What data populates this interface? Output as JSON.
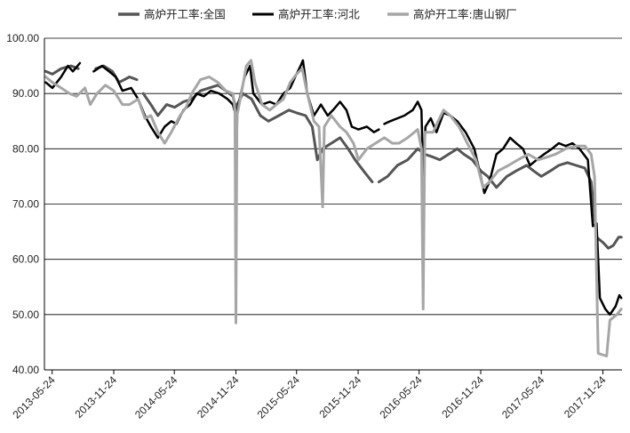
{
  "chart_data": {
    "type": "line",
    "title": "",
    "xlabel": "",
    "ylabel": "",
    "ylim": [
      40,
      100
    ],
    "y_ticks": [
      "40.00",
      "50.00",
      "60.00",
      "70.00",
      "80.00",
      "90.00",
      "100.00"
    ],
    "x_range": [
      "2013-05-01",
      "2018-01-20"
    ],
    "x_tick_labels": [
      "2013-05-24",
      "2013-11-24",
      "2014-05-24",
      "2014-11-24",
      "2015-05-24",
      "2015-11-24",
      "2016-05-24",
      "2016-11-24",
      "2017-05-24",
      "2017-11-24"
    ],
    "grid": "horizontal",
    "legend": "top",
    "series": [
      {
        "name": "高炉开工率:全国",
        "color": "#555555",
        "width": 3,
        "points": [
          [
            "2013-05-05",
            94
          ],
          [
            "2013-05-25",
            93.5
          ],
          [
            "2013-06-20",
            94.5
          ],
          [
            "2013-07-20",
            95
          ],
          [
            "2013-08-10",
            94.5
          ],
          null,
          [
            "2013-10-01",
            94.5
          ],
          [
            "2013-10-25",
            95
          ],
          [
            "2013-11-20",
            94
          ],
          [
            "2013-12-10",
            92
          ],
          [
            "2014-01-10",
            93
          ],
          [
            "2014-02-01",
            92.5
          ],
          null,
          [
            "2014-02-20",
            90
          ],
          [
            "2014-03-15",
            88
          ],
          [
            "2014-04-05",
            86
          ],
          [
            "2014-05-01",
            88
          ],
          [
            "2014-05-25",
            87.5
          ],
          [
            "2014-06-20",
            88.5
          ],
          [
            "2014-07-15",
            89
          ],
          [
            "2014-08-10",
            90.5
          ],
          [
            "2014-09-05",
            91
          ],
          [
            "2014-10-01",
            91.5
          ],
          [
            "2014-10-25",
            90.5
          ],
          [
            "2014-11-15",
            89.5
          ],
          [
            "2014-11-21",
            88
          ],
          [
            "2014-11-24",
            76
          ],
          [
            "2014-11-28",
            88
          ],
          [
            "2014-12-15",
            90
          ],
          [
            "2015-01-10",
            89
          ],
          [
            "2015-02-05",
            86
          ],
          [
            "2015-03-01",
            85
          ],
          [
            "2015-04-01",
            86
          ],
          [
            "2015-05-01",
            87
          ],
          [
            "2015-05-24",
            86.5
          ],
          [
            "2015-06-20",
            86
          ],
          [
            "2015-07-10",
            84
          ],
          [
            "2015-07-25",
            78
          ],
          [
            "2015-08-10",
            80
          ],
          [
            "2015-09-05",
            81
          ],
          [
            "2015-10-01",
            82
          ],
          [
            "2015-10-25",
            80
          ],
          [
            "2015-11-15",
            78
          ],
          [
            "2015-12-10",
            76
          ],
          [
            "2016-01-05",
            74
          ],
          null,
          [
            "2016-01-25",
            74
          ],
          [
            "2016-02-20",
            75
          ],
          [
            "2016-03-20",
            77
          ],
          [
            "2016-04-20",
            78
          ],
          [
            "2016-05-20",
            80
          ],
          [
            "2016-06-10",
            79
          ],
          [
            "2016-07-05",
            78.5
          ],
          [
            "2016-07-25",
            78
          ],
          [
            "2016-08-20",
            79
          ],
          [
            "2016-09-15",
            80
          ],
          [
            "2016-10-05",
            79
          ],
          [
            "2016-10-30",
            78
          ],
          [
            "2016-11-24",
            76
          ],
          [
            "2016-12-15",
            75
          ],
          [
            "2017-01-10",
            73
          ],
          [
            "2017-02-10",
            75
          ],
          [
            "2017-03-10",
            76
          ],
          [
            "2017-04-10",
            77
          ],
          [
            "2017-05-01",
            76
          ],
          [
            "2017-05-24",
            75
          ],
          [
            "2017-06-20",
            76
          ],
          [
            "2017-07-15",
            77
          ],
          [
            "2017-08-10",
            77.5
          ],
          [
            "2017-09-05",
            77
          ],
          [
            "2017-10-01",
            76.5
          ],
          [
            "2017-10-20",
            74
          ],
          [
            "2017-11-05",
            64
          ],
          [
            "2017-11-25",
            63
          ],
          [
            "2017-12-10",
            62
          ],
          [
            "2017-12-25",
            62.5
          ],
          [
            "2018-01-10",
            64
          ],
          [
            "2018-01-18",
            64
          ]
        ]
      },
      {
        "name": "高炉开工率:河北",
        "color": "#000000",
        "width": 2.5,
        "points": [
          [
            "2013-05-05",
            92
          ],
          [
            "2013-05-25",
            91
          ],
          [
            "2013-06-20",
            93
          ],
          [
            "2013-07-10",
            95
          ],
          [
            "2013-07-25",
            94
          ],
          [
            "2013-08-15",
            95.5
          ],
          null,
          [
            "2013-09-25",
            94
          ],
          [
            "2013-10-20",
            95
          ],
          [
            "2013-11-10",
            94
          ],
          [
            "2013-11-30",
            93
          ],
          [
            "2013-12-20",
            90.5
          ],
          [
            "2014-01-15",
            91
          ],
          [
            "2014-02-05",
            89
          ],
          [
            "2014-02-25",
            86
          ],
          [
            "2014-03-15",
            84
          ],
          [
            "2014-04-05",
            82
          ],
          [
            "2014-04-25",
            84
          ],
          [
            "2014-05-15",
            85
          ],
          [
            "2014-05-30",
            84.5
          ],
          [
            "2014-06-20",
            87
          ],
          [
            "2014-07-10",
            88
          ],
          [
            "2014-07-30",
            90
          ],
          [
            "2014-08-20",
            89.5
          ],
          [
            "2014-09-10",
            90.5
          ],
          [
            "2014-10-05",
            90
          ],
          [
            "2014-10-30",
            89
          ],
          [
            "2014-11-15",
            88
          ],
          [
            "2014-11-24",
            86
          ],
          [
            "2014-12-05",
            89
          ],
          [
            "2014-12-20",
            93
          ],
          [
            "2015-01-05",
            95
          ],
          [
            "2015-01-15",
            90
          ],
          [
            "2015-02-10",
            88
          ],
          [
            "2015-03-05",
            88.5
          ],
          [
            "2015-03-25",
            88
          ],
          [
            "2015-04-15",
            90
          ],
          [
            "2015-05-05",
            91
          ],
          [
            "2015-05-20",
            93
          ],
          [
            "2015-06-05",
            95
          ],
          [
            "2015-06-12",
            96
          ],
          [
            "2015-06-25",
            90
          ],
          [
            "2015-07-15",
            86
          ],
          [
            "2015-08-05",
            88
          ],
          [
            "2015-08-25",
            86
          ],
          [
            "2015-09-10",
            87
          ],
          [
            "2015-10-01",
            88.5
          ],
          [
            "2015-10-20",
            87
          ],
          [
            "2015-11-05",
            84
          ],
          [
            "2015-11-25",
            83.5
          ],
          [
            "2015-12-20",
            84
          ],
          [
            "2016-01-10",
            83
          ],
          [
            "2016-01-25",
            83.5
          ],
          null,
          [
            "2016-02-10",
            84.5
          ],
          [
            "2016-02-28",
            85
          ],
          [
            "2016-03-20",
            85.5
          ],
          [
            "2016-04-10",
            86
          ],
          [
            "2016-05-05",
            87
          ],
          [
            "2016-05-20",
            88.5
          ],
          [
            "2016-05-31",
            87
          ],
          [
            "2016-06-05",
            75
          ],
          [
            "2016-06-12",
            84
          ],
          [
            "2016-06-28",
            85.5
          ],
          [
            "2016-07-15",
            83
          ],
          [
            "2016-08-05",
            86.5
          ],
          [
            "2016-08-25",
            86
          ],
          [
            "2016-09-15",
            85
          ],
          [
            "2016-10-10",
            83
          ],
          [
            "2016-11-05",
            80
          ],
          [
            "2016-11-24",
            75
          ],
          [
            "2016-12-05",
            72
          ],
          [
            "2016-12-20",
            74
          ],
          [
            "2017-01-10",
            79
          ],
          [
            "2017-01-30",
            80
          ],
          [
            "2017-02-20",
            82
          ],
          [
            "2017-03-10",
            81
          ],
          [
            "2017-03-30",
            80
          ],
          [
            "2017-04-20",
            77
          ],
          [
            "2017-05-10",
            78
          ],
          [
            "2017-06-01",
            79
          ],
          [
            "2017-06-25",
            80
          ],
          [
            "2017-07-15",
            81
          ],
          [
            "2017-08-05",
            80.5
          ],
          [
            "2017-08-25",
            81
          ],
          [
            "2017-09-15",
            80
          ],
          [
            "2017-10-10",
            78
          ],
          [
            "2017-10-25",
            66
          ],
          [
            "2017-11-05",
            66.5
          ],
          [
            "2017-11-15",
            53
          ],
          [
            "2017-12-01",
            51
          ],
          [
            "2017-12-15",
            50
          ],
          [
            "2018-01-01",
            51.5
          ],
          [
            "2018-01-12",
            53.5
          ],
          [
            "2018-01-18",
            53
          ]
        ]
      },
      {
        "name": "高炉开工率:唐山钢厂",
        "color": "#a6a6a6",
        "width": 3,
        "points": [
          [
            "2013-05-05",
            93
          ],
          [
            "2013-05-25",
            92
          ],
          [
            "2013-06-20",
            91
          ],
          [
            "2013-07-15",
            90
          ],
          [
            "2013-08-05",
            89.5
          ],
          [
            "2013-08-30",
            91
          ],
          [
            "2013-09-15",
            88
          ],
          [
            "2013-10-05",
            90
          ],
          [
            "2013-10-30",
            91.5
          ],
          [
            "2013-11-24",
            90.5
          ],
          [
            "2013-12-20",
            88
          ],
          [
            "2014-01-10",
            88
          ],
          [
            "2014-02-05",
            89
          ],
          [
            "2014-02-25",
            85.5
          ],
          [
            "2014-03-15",
            86
          ],
          [
            "2014-04-05",
            83
          ],
          [
            "2014-04-25",
            81
          ],
          [
            "2014-05-15",
            83
          ],
          [
            "2014-06-10",
            86
          ],
          [
            "2014-06-28",
            87.5
          ],
          [
            "2014-07-15",
            90
          ],
          [
            "2014-08-10",
            92.5
          ],
          [
            "2014-09-05",
            93
          ],
          [
            "2014-10-01",
            92
          ],
          [
            "2014-10-25",
            90.5
          ],
          [
            "2014-11-15",
            90
          ],
          [
            "2014-11-21",
            87
          ],
          [
            "2014-11-24",
            48.5
          ],
          [
            "2014-11-27",
            86
          ],
          [
            "2014-12-10",
            90
          ],
          [
            "2014-12-25",
            95
          ],
          [
            "2015-01-08",
            96
          ],
          [
            "2015-01-20",
            92
          ],
          [
            "2015-02-10",
            88
          ],
          [
            "2015-03-05",
            87
          ],
          [
            "2015-03-25",
            88
          ],
          [
            "2015-04-15",
            89
          ],
          [
            "2015-05-05",
            92
          ],
          [
            "2015-05-24",
            93.5
          ],
          [
            "2015-06-10",
            94.5
          ],
          [
            "2015-06-25",
            90
          ],
          [
            "2015-07-15",
            85
          ],
          [
            "2015-07-30",
            84
          ],
          [
            "2015-08-10",
            69.5
          ],
          [
            "2015-08-15",
            84
          ],
          [
            "2015-09-05",
            86
          ],
          [
            "2015-10-01",
            84
          ],
          [
            "2015-10-20",
            83
          ],
          [
            "2015-11-10",
            81
          ],
          [
            "2015-11-25",
            78
          ],
          [
            "2015-12-20",
            80
          ],
          [
            "2016-01-15",
            81
          ],
          [
            "2016-02-10",
            82
          ],
          [
            "2016-03-05",
            81
          ],
          [
            "2016-03-25",
            81
          ],
          [
            "2016-04-20",
            82
          ],
          [
            "2016-05-20",
            83.5
          ],
          [
            "2016-05-31",
            80
          ],
          [
            "2016-06-05",
            51
          ],
          [
            "2016-06-10",
            83
          ],
          [
            "2016-07-05",
            83
          ],
          [
            "2016-07-20",
            85
          ],
          [
            "2016-08-05",
            87
          ],
          [
            "2016-08-25",
            86
          ],
          [
            "2016-09-20",
            84
          ],
          [
            "2016-10-15",
            81
          ],
          [
            "2016-11-10",
            78
          ],
          [
            "2016-12-01",
            73
          ],
          [
            "2016-12-20",
            74
          ],
          [
            "2017-01-15",
            76
          ],
          [
            "2017-02-15",
            77
          ],
          [
            "2017-03-15",
            78
          ],
          [
            "2017-04-15",
            79
          ],
          [
            "2017-05-15",
            78
          ],
          [
            "2017-06-10",
            78.5
          ],
          [
            "2017-07-05",
            79
          ],
          [
            "2017-08-05",
            80
          ],
          [
            "2017-09-05",
            80.5
          ],
          [
            "2017-10-01",
            80.5
          ],
          [
            "2017-10-20",
            79
          ],
          [
            "2017-10-30",
            75
          ],
          [
            "2017-11-10",
            43
          ],
          [
            "2017-12-05",
            42.5
          ],
          [
            "2017-12-15",
            49
          ],
          [
            "2018-01-05",
            50
          ],
          [
            "2018-01-18",
            51
          ]
        ]
      }
    ]
  }
}
